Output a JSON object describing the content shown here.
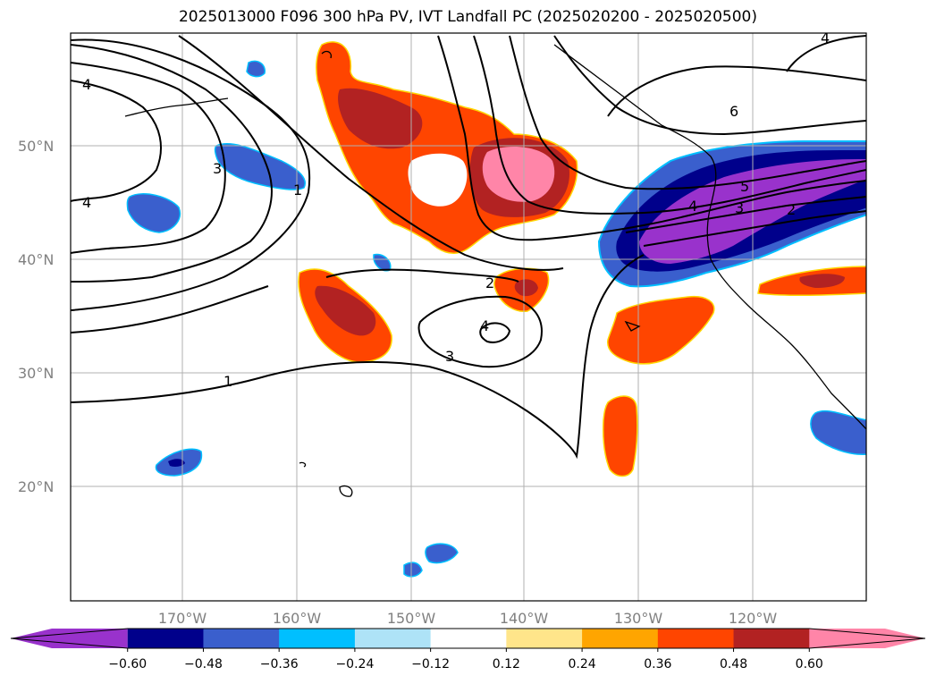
{
  "title": "2025013000 F096 300 hPa PV, IVT Landfall PC (2025020200 - 2025020500)",
  "map": {
    "lat_labels": [
      "50°N",
      "40°N",
      "30°N",
      "20°N"
    ],
    "lon_labels": [
      "170°W",
      "160°W",
      "150°W",
      "140°W",
      "130°W",
      "120°W"
    ],
    "contour_labels": [
      "4",
      "4",
      "3",
      "1",
      "1",
      "2",
      "4",
      "3",
      "6",
      "5",
      "4",
      "3",
      "2",
      "4"
    ],
    "contour_levels": [
      1,
      2,
      3,
      4,
      5,
      6
    ],
    "gridlines": true
  },
  "colorbar": {
    "ticks": [
      "−0.60",
      "−0.48",
      "−0.36",
      "−0.24",
      "−0.12",
      "0.12",
      "0.24",
      "0.36",
      "0.48",
      "0.60"
    ],
    "colors": [
      "#9932cc",
      "#00008b",
      "#3a5fcd",
      "#00bfff",
      "#aee3f7",
      "#ffffff",
      "#ffe58a",
      "#ffa500",
      "#ff4500",
      "#b22222",
      "#ff85a8"
    ],
    "extend": "both"
  }
}
